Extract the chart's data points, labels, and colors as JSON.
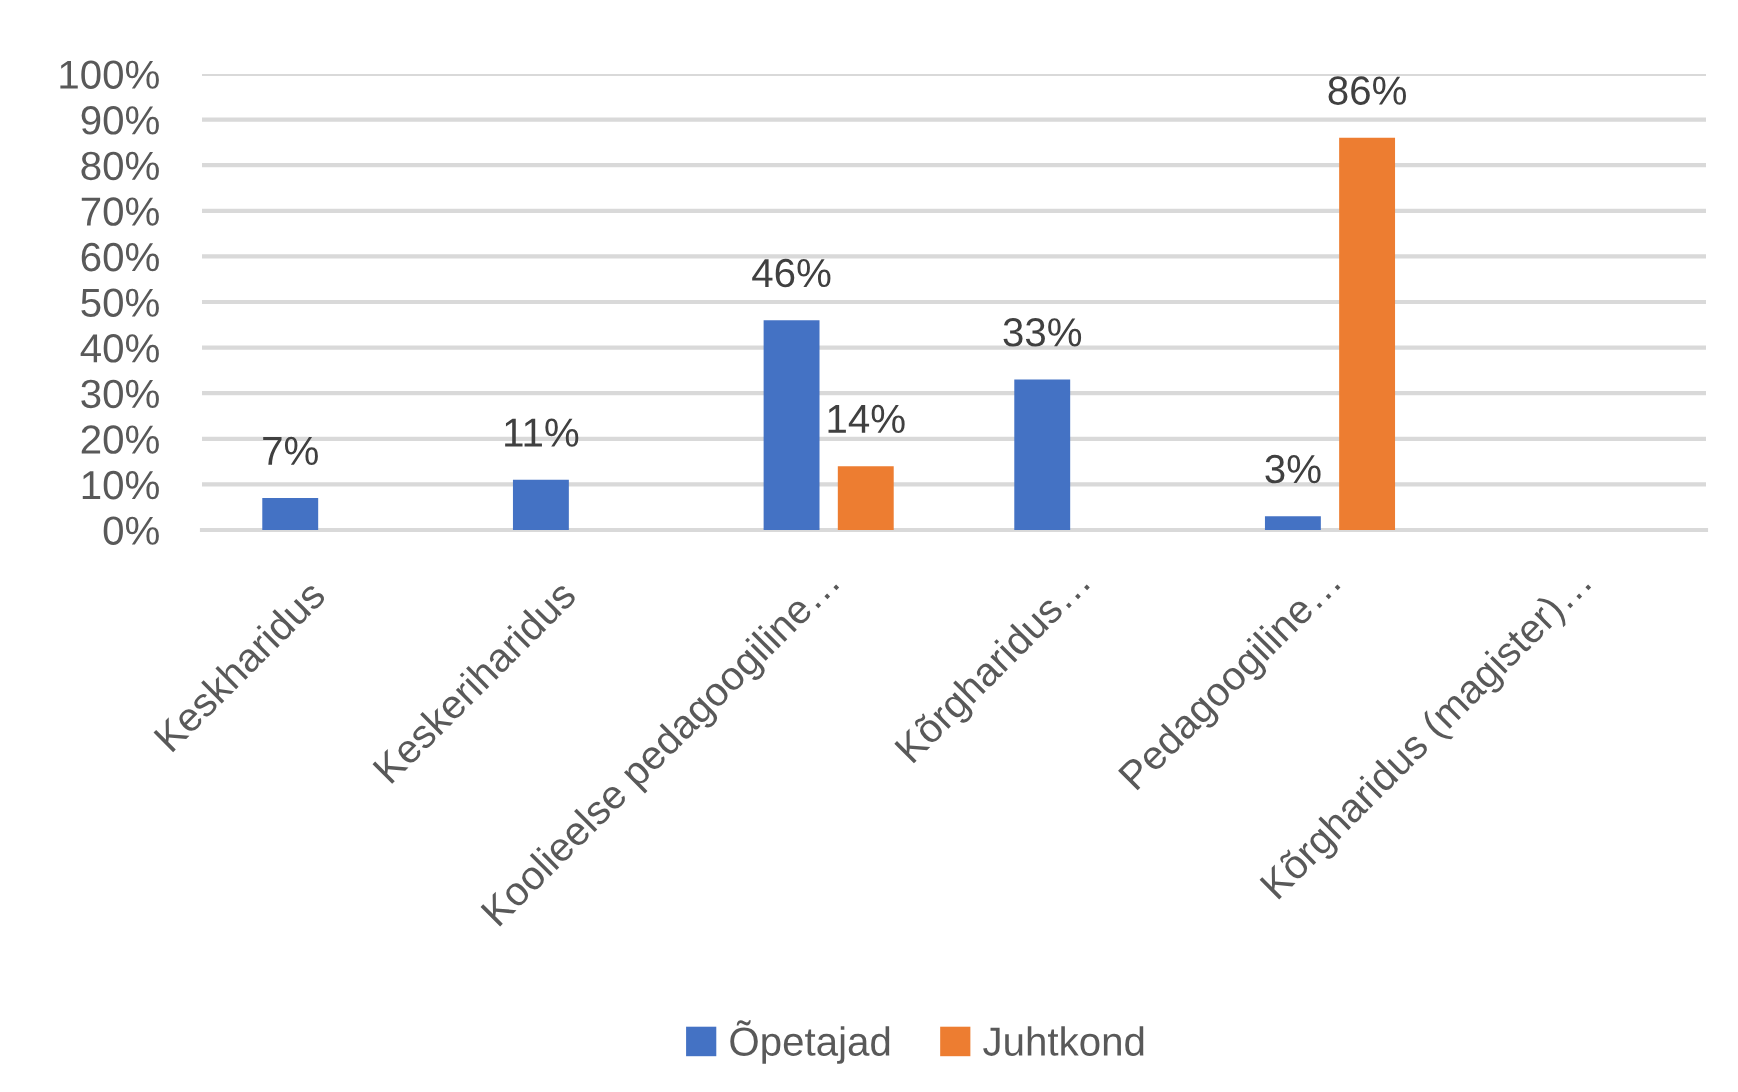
{
  "chart_data": {
    "type": "bar",
    "categories": [
      "Keskharidus",
      "Keskeriharidus",
      "Koolieelse pedagoogiline…",
      "Kõrgharidus…",
      "Pedagoogiline…",
      "Kõrgharidus (magister)…"
    ],
    "series": [
      {
        "name": "Õpetajad",
        "color": "#4472c4",
        "values": [
          7,
          11,
          46,
          33,
          3,
          null
        ],
        "value_labels": [
          "7%",
          "11%",
          "46%",
          "33%",
          "3%",
          null
        ]
      },
      {
        "name": "Juhtkond",
        "color": "#ed7d31",
        "values": [
          null,
          null,
          14,
          null,
          86,
          null
        ],
        "value_labels": [
          null,
          null,
          "14%",
          null,
          "86%",
          null
        ]
      }
    ],
    "ylim": [
      0,
      100
    ],
    "yticks": [
      {
        "value": 0,
        "label": "0%"
      },
      {
        "value": 10,
        "label": "10%"
      },
      {
        "value": 20,
        "label": "20%"
      },
      {
        "value": 30,
        "label": "30%"
      },
      {
        "value": 40,
        "label": "40%"
      },
      {
        "value": 50,
        "label": "50%"
      },
      {
        "value": 60,
        "label": "60%"
      },
      {
        "value": 70,
        "label": "70%"
      },
      {
        "value": 80,
        "label": "80%"
      },
      {
        "value": 90,
        "label": "90%"
      },
      {
        "value": 100,
        "label": "100%"
      }
    ],
    "grid": "y",
    "legend": "bottom"
  }
}
